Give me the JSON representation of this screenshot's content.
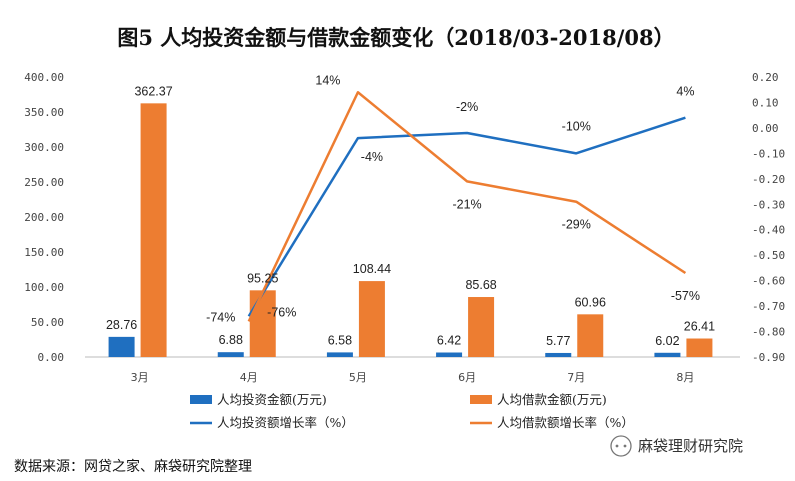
{
  "chart_data": {
    "type": "bar",
    "title": "图5   人均投资金额与借款金额变化（2018/03-2018/08）",
    "categories": [
      "3月",
      "4月",
      "5月",
      "6月",
      "7月",
      "8月"
    ],
    "y_left": {
      "ylim": [
        0,
        400
      ],
      "ticks": [
        "0.00",
        "50.00",
        "100.00",
        "150.00",
        "200.00",
        "250.00",
        "300.00",
        "350.00",
        "400.00"
      ]
    },
    "y_right": {
      "ylim": [
        -0.9,
        0.2
      ],
      "ticks": [
        "-0.90",
        "-0.80",
        "-0.70",
        "-0.60",
        "-0.50",
        "-0.40",
        "-0.30",
        "-0.20",
        "-0.10",
        "0.00",
        "0.10",
        "0.20"
      ]
    },
    "series": [
      {
        "name": "人均投资金额(万元)",
        "type": "bar",
        "axis": "left",
        "color": "#1f6fc0",
        "values": [
          28.76,
          6.88,
          6.58,
          6.42,
          5.77,
          6.02
        ],
        "labels": [
          "28.76",
          "6.88",
          "6.58",
          "6.42",
          "5.77",
          "6.02"
        ]
      },
      {
        "name": "人均借款金额(万元)",
        "type": "bar",
        "axis": "left",
        "color": "#ed7d31",
        "values": [
          362.37,
          95.25,
          108.44,
          85.68,
          60.96,
          26.41
        ],
        "labels": [
          "362.37",
          "95.25",
          "108.44",
          "85.68",
          "60.96",
          "26.41"
        ]
      },
      {
        "name": "人均投资额增长率（%）",
        "type": "line",
        "axis": "right",
        "color": "#1f6fc0",
        "values": [
          null,
          -0.74,
          -0.04,
          -0.02,
          -0.1,
          0.04
        ],
        "labels": [
          null,
          "-74%",
          "-4%",
          "-2%",
          "-10%",
          "4%"
        ]
      },
      {
        "name": "人均借款额增长率（%）",
        "type": "line",
        "axis": "right",
        "color": "#ed7d31",
        "values": [
          null,
          -0.76,
          0.14,
          -0.21,
          -0.29,
          -0.57
        ],
        "labels": [
          null,
          "-76%",
          "14%",
          "-21%",
          "-29%",
          "-57%"
        ]
      }
    ],
    "source": "数据来源：网贷之家、麻袋研究院整理",
    "brand": "麻袋理财研究院"
  }
}
